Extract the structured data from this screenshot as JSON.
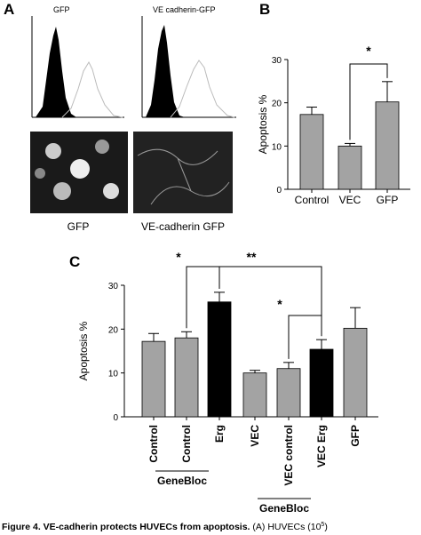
{
  "panel_a": {
    "letter": "A",
    "hist_left_title": "GFP",
    "hist_right_title": "VE cadherin-GFP",
    "image_left_label": "GFP",
    "image_right_label": "VE-cadherin GFP"
  },
  "chart_data": [
    {
      "type": "bar",
      "letter": "B",
      "ylabel": "Apoptosis %",
      "categories": [
        "Control",
        "VEC",
        "GFP"
      ],
      "values": [
        17.3,
        10,
        20.2
      ],
      "errors": [
        1.7,
        0.6,
        4.7
      ],
      "colors": [
        "#a3a3a3",
        "#a3a3a3",
        "#a3a3a3"
      ],
      "ylim": [
        0,
        30
      ],
      "yticks": [
        0,
        10,
        20,
        30
      ],
      "annotations": [
        "*"
      ]
    },
    {
      "type": "bar",
      "letter": "C",
      "ylabel": "Apoptosis %",
      "categories": [
        "Control",
        "Control",
        "Erg",
        "VEC",
        "VEC control",
        "VEC Erg",
        "GFP"
      ],
      "values": [
        17.2,
        18,
        26.2,
        10,
        11,
        15.4,
        20.2
      ],
      "errors": [
        1.8,
        1.4,
        2.2,
        0.6,
        1.4,
        2.2,
        4.7
      ],
      "colors": [
        "#a3a3a3",
        "#a3a3a3",
        "#000000",
        "#a3a3a3",
        "#a3a3a3",
        "#000000",
        "#a3a3a3"
      ],
      "ylim": [
        0,
        30
      ],
      "yticks": [
        0,
        10,
        20,
        30
      ],
      "annotations": [
        "*",
        "**",
        "*"
      ],
      "group_labels": [
        "GeneBloc",
        "GeneBloc"
      ]
    }
  ],
  "caption": {
    "bold": "Figure 4. VE-cadherin protects HUVECs from apoptosis.",
    "text": " (A) HUVECs (10",
    "sup": "5",
    "end": ")"
  }
}
